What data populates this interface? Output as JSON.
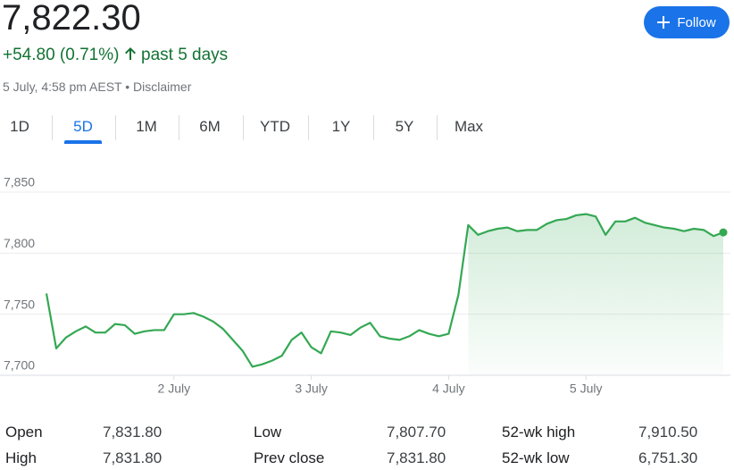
{
  "header": {
    "price": "7,822.30",
    "change": "+54.80 (0.71%)",
    "period": "past 5 days",
    "timestamp": "5 July, 4:58 pm AEST",
    "disclaimer": "Disclaimer",
    "follow": "Follow"
  },
  "tabs": {
    "items": [
      "1D",
      "5D",
      "1M",
      "6M",
      "YTD",
      "1Y",
      "5Y",
      "Max"
    ],
    "selected": 1
  },
  "chart_data": {
    "type": "line",
    "color": "#34a853",
    "grid": true,
    "ylim": [
      7700,
      7850
    ],
    "yticks": [
      {
        "value": 7700,
        "label": "7,700"
      },
      {
        "value": 7750,
        "label": "7,750"
      },
      {
        "value": 7800,
        "label": "7,800"
      },
      {
        "value": 7850,
        "label": "7,850"
      }
    ],
    "categories": [
      null,
      null,
      null,
      null,
      null,
      null,
      null,
      null,
      null,
      null,
      null,
      null,
      null,
      "2 July",
      null,
      null,
      null,
      null,
      null,
      null,
      null,
      null,
      null,
      null,
      null,
      null,
      null,
      "3 July",
      null,
      null,
      null,
      null,
      null,
      null,
      null,
      null,
      null,
      null,
      null,
      null,
      null,
      "4 July",
      null,
      null,
      null,
      null,
      null,
      null,
      null,
      null,
      null,
      null,
      null,
      null,
      null,
      "5 July",
      null,
      null,
      null,
      null,
      null,
      null,
      null,
      null,
      null,
      null,
      null,
      null,
      null,
      null
    ],
    "values": [
      7767,
      7722,
      7731,
      7736,
      7740,
      7735,
      7735,
      7742,
      7741,
      7734,
      7736,
      7737,
      7737,
      7750,
      7750,
      7751,
      7748,
      7744,
      7738,
      7729,
      7720,
      7707,
      7709,
      7712,
      7716,
      7729,
      7735,
      7723,
      7718,
      7736,
      7735,
      7733,
      7739,
      7743,
      7732,
      7730,
      7729,
      7732,
      7737,
      7734,
      7732,
      7734,
      7766,
      7823,
      7815,
      7818,
      7820,
      7821,
      7818,
      7819,
      7819,
      7824,
      7827,
      7828,
      7831,
      7832,
      7830,
      7815,
      7826,
      7826,
      7829,
      7825,
      7823,
      7821,
      7820,
      7818,
      7820,
      7819,
      7814,
      7817
    ]
  },
  "stats": [
    [
      "Open",
      "7,831.80",
      "Low",
      "7,807.70",
      "52-wk high",
      "7,910.50"
    ],
    [
      "High",
      "7,831.80",
      "Prev close",
      "7,831.80",
      "52-wk low",
      "6,751.30"
    ]
  ]
}
